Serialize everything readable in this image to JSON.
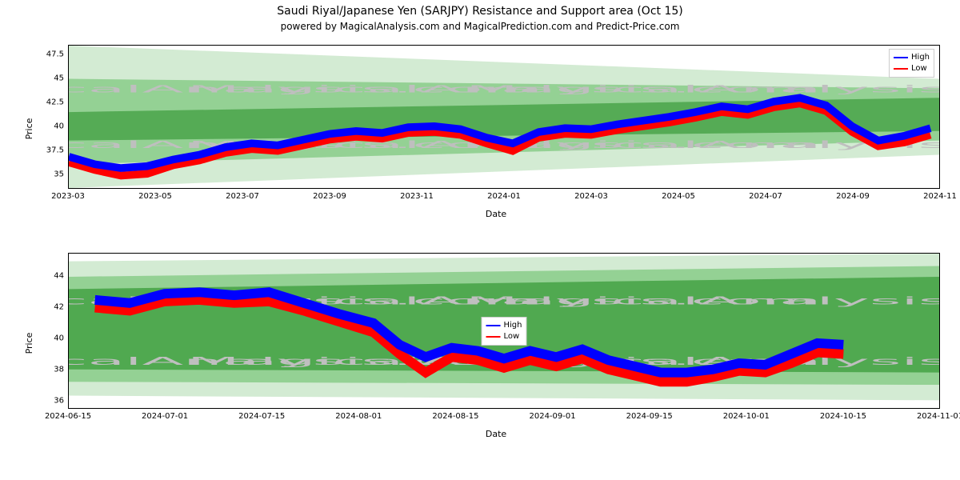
{
  "title": "Saudi Riyal/Japanese Yen (SARJPY) Resistance and Support area (Oct 15)",
  "subtitle": "powered by MagicalAnalysis.com and MagicalPrediction.com and Predict-Price.com",
  "watermark_text": "MagicalAnalysis.com",
  "legend": {
    "high": "High",
    "low": "Low"
  },
  "colors": {
    "high_line": "#0000ff",
    "low_line": "#ff0000",
    "band_dark": "#3a9b3a",
    "band_mid": "#6bbf6b",
    "band_light": "#a8d8a8",
    "background": "#ffffff",
    "border": "#000000",
    "text": "#000000",
    "watermark": "#bfbfbf"
  },
  "chart1": {
    "type": "line",
    "ylabel": "Price",
    "xlabel": "Date",
    "ylim": [
      33.5,
      48.5
    ],
    "yticks": [
      35.0,
      37.5,
      40.0,
      42.5,
      45.0,
      47.5
    ],
    "xticks": [
      "2023-03",
      "2023-05",
      "2023-07",
      "2023-09",
      "2023-11",
      "2024-01",
      "2024-03",
      "2024-05",
      "2024-07",
      "2024-09",
      "2024-11"
    ],
    "xdomain": [
      0,
      100
    ],
    "bands": [
      {
        "color": "#a8d8a8",
        "opacity": 0.5,
        "points": [
          [
            0,
            48.5
          ],
          [
            100,
            45.0
          ],
          [
            100,
            37.0
          ],
          [
            0,
            33.5
          ]
        ]
      },
      {
        "color": "#6bbf6b",
        "opacity": 0.6,
        "points": [
          [
            0,
            45.0
          ],
          [
            100,
            44.0
          ],
          [
            100,
            38.5
          ],
          [
            0,
            36.0
          ]
        ]
      },
      {
        "color": "#3a9b3a",
        "opacity": 0.7,
        "points": [
          [
            0,
            41.5
          ],
          [
            100,
            43.0
          ],
          [
            100,
            39.5
          ],
          [
            0,
            38.5
          ]
        ]
      }
    ],
    "series": {
      "high": [
        [
          0,
          36.8
        ],
        [
          3,
          36.0
        ],
        [
          6,
          35.6
        ],
        [
          9,
          35.8
        ],
        [
          12,
          36.5
        ],
        [
          15,
          37.0
        ],
        [
          18,
          37.8
        ],
        [
          21,
          38.2
        ],
        [
          24,
          38.0
        ],
        [
          27,
          38.6
        ],
        [
          30,
          39.2
        ],
        [
          33,
          39.5
        ],
        [
          36,
          39.3
        ],
        [
          39,
          39.9
        ],
        [
          42,
          40.0
        ],
        [
          45,
          39.7
        ],
        [
          48,
          38.8
        ],
        [
          51,
          38.2
        ],
        [
          54,
          39.4
        ],
        [
          57,
          39.8
        ],
        [
          60,
          39.7
        ],
        [
          63,
          40.2
        ],
        [
          66,
          40.6
        ],
        [
          69,
          41.0
        ],
        [
          72,
          41.5
        ],
        [
          75,
          42.1
        ],
        [
          78,
          41.8
        ],
        [
          81,
          42.6
        ],
        [
          84,
          43.0
        ],
        [
          87,
          42.2
        ],
        [
          90,
          40.0
        ],
        [
          93,
          38.5
        ],
        [
          96,
          39.0
        ],
        [
          99,
          39.8
        ]
      ],
      "low": [
        [
          0,
          36.2
        ],
        [
          3,
          35.4
        ],
        [
          6,
          34.8
        ],
        [
          9,
          35.0
        ],
        [
          12,
          35.9
        ],
        [
          15,
          36.4
        ],
        [
          18,
          37.2
        ],
        [
          21,
          37.6
        ],
        [
          24,
          37.4
        ],
        [
          27,
          38.0
        ],
        [
          30,
          38.6
        ],
        [
          33,
          38.9
        ],
        [
          36,
          38.7
        ],
        [
          39,
          39.3
        ],
        [
          42,
          39.4
        ],
        [
          45,
          39.1
        ],
        [
          48,
          38.2
        ],
        [
          51,
          37.4
        ],
        [
          54,
          38.8
        ],
        [
          57,
          39.2
        ],
        [
          60,
          39.1
        ],
        [
          63,
          39.6
        ],
        [
          66,
          40.0
        ],
        [
          69,
          40.4
        ],
        [
          72,
          40.9
        ],
        [
          75,
          41.5
        ],
        [
          78,
          41.2
        ],
        [
          81,
          42.0
        ],
        [
          84,
          42.4
        ],
        [
          87,
          41.6
        ],
        [
          90,
          39.4
        ],
        [
          93,
          37.9
        ],
        [
          96,
          38.3
        ],
        [
          99,
          39.1
        ]
      ]
    },
    "line_width": 1.2
  },
  "chart2": {
    "type": "line",
    "ylabel": "Price",
    "xlabel": "Date",
    "ylim": [
      35.5,
      45.5
    ],
    "yticks": [
      36,
      38,
      40,
      42,
      44
    ],
    "xticks": [
      "2024-06-15",
      "2024-07-01",
      "2024-07-15",
      "2024-08-01",
      "2024-08-15",
      "2024-09-01",
      "2024-09-15",
      "2024-10-01",
      "2024-10-15",
      "2024-11-01"
    ],
    "xdomain": [
      0,
      100
    ],
    "bands": [
      {
        "color": "#a8d8a8",
        "opacity": 0.5,
        "points": [
          [
            0,
            45.0
          ],
          [
            100,
            45.5
          ],
          [
            100,
            36.0
          ],
          [
            0,
            36.3
          ]
        ]
      },
      {
        "color": "#6bbf6b",
        "opacity": 0.6,
        "points": [
          [
            0,
            44.0
          ],
          [
            100,
            44.7
          ],
          [
            100,
            37.0
          ],
          [
            0,
            37.2
          ]
        ]
      },
      {
        "color": "#3a9b3a",
        "opacity": 0.75,
        "points": [
          [
            0,
            43.2
          ],
          [
            100,
            44.0
          ],
          [
            100,
            37.8
          ],
          [
            0,
            38.0
          ]
        ]
      }
    ],
    "series": {
      "high": [
        [
          3,
          42.5
        ],
        [
          7,
          42.3
        ],
        [
          11,
          42.9
        ],
        [
          15,
          43.0
        ],
        [
          19,
          42.8
        ],
        [
          23,
          43.0
        ],
        [
          27,
          42.3
        ],
        [
          31,
          41.6
        ],
        [
          35,
          41.0
        ],
        [
          38,
          39.6
        ],
        [
          41,
          38.8
        ],
        [
          44,
          39.4
        ],
        [
          47,
          39.2
        ],
        [
          50,
          38.7
        ],
        [
          53,
          39.2
        ],
        [
          56,
          38.8
        ],
        [
          59,
          39.3
        ],
        [
          62,
          38.6
        ],
        [
          65,
          38.2
        ],
        [
          68,
          37.8
        ],
        [
          71,
          37.8
        ],
        [
          74,
          38.0
        ],
        [
          77,
          38.4
        ],
        [
          80,
          38.3
        ],
        [
          83,
          39.0
        ],
        [
          86,
          39.7
        ],
        [
          89,
          39.6
        ]
      ],
      "low": [
        [
          3,
          42.0
        ],
        [
          7,
          41.8
        ],
        [
          11,
          42.4
        ],
        [
          15,
          42.5
        ],
        [
          19,
          42.3
        ],
        [
          23,
          42.4
        ],
        [
          27,
          41.8
        ],
        [
          31,
          41.1
        ],
        [
          35,
          40.4
        ],
        [
          38,
          39.0
        ],
        [
          41,
          37.8
        ],
        [
          44,
          38.8
        ],
        [
          47,
          38.6
        ],
        [
          50,
          38.1
        ],
        [
          53,
          38.6
        ],
        [
          56,
          38.2
        ],
        [
          59,
          38.7
        ],
        [
          62,
          38.0
        ],
        [
          65,
          37.6
        ],
        [
          68,
          37.2
        ],
        [
          71,
          37.2
        ],
        [
          74,
          37.5
        ],
        [
          77,
          37.9
        ],
        [
          80,
          37.8
        ],
        [
          83,
          38.4
        ],
        [
          86,
          39.1
        ],
        [
          89,
          39.0
        ]
      ]
    },
    "line_width": 1.5
  }
}
